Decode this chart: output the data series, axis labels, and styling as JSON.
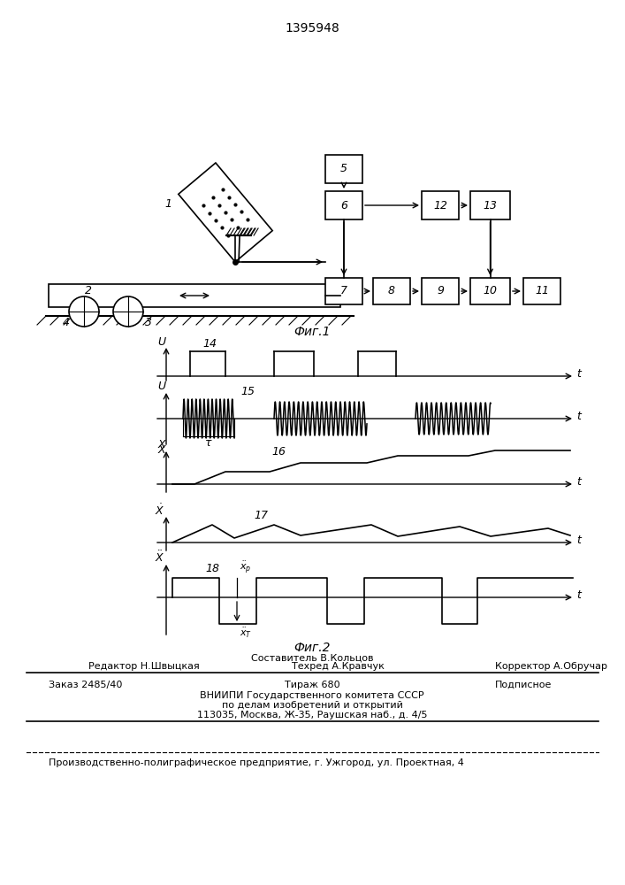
{
  "title": "1395948",
  "fig1_label": "Фиг.1",
  "fig2_label": "Фиг.2",
  "bg_color": "#ffffff",
  "line_color": "#000000",
  "font_color": "#000000",
  "footer_editor": "Редактор Н.Швыцкая",
  "footer_composer": "Составитель В.Кольцов",
  "footer_techred": "Техред А.Кравчук",
  "footer_corrector": "Корректор А.Обручар",
  "footer_order": "Заказ 2485/40",
  "footer_edition": "Тираж 680",
  "footer_subscription": "Подписное",
  "footer_vniipi": "ВНИИПИ Государственного комитета СССР",
  "footer_affairs": "по делам изобретений и открытий",
  "footer_address": "113035, Москва, Ж-35, Раушская наб., д. 4/5",
  "footer_production": "Производственно-полиграфическое предприятие, г. Ужгород, ул. Проектная, 4"
}
